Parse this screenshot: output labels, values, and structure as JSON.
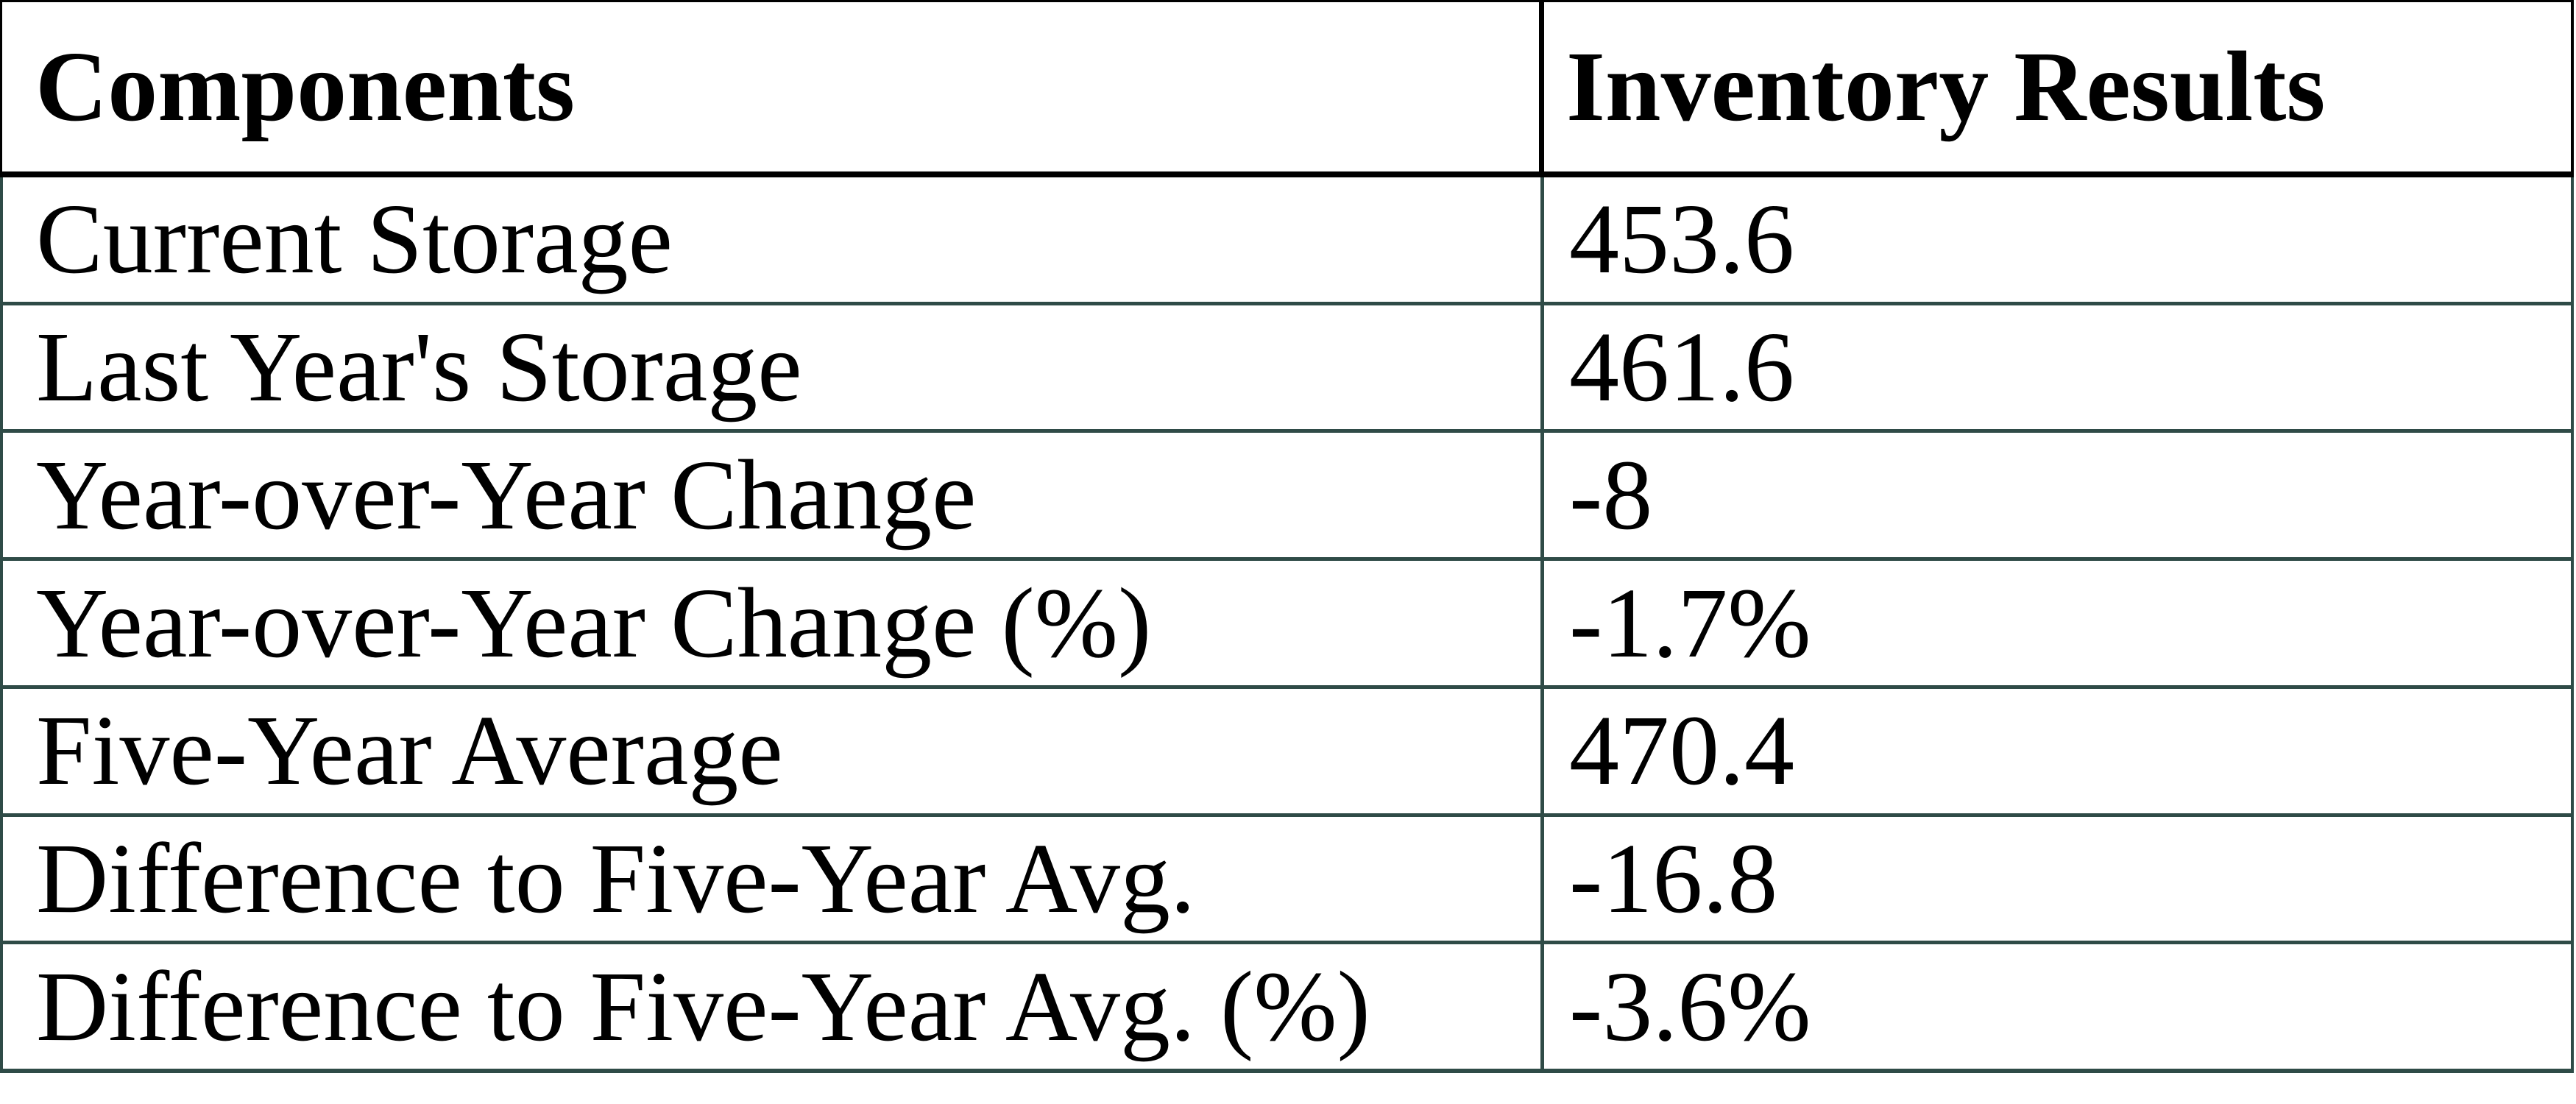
{
  "chart_data": {
    "type": "table",
    "title": "",
    "columns": [
      {
        "label": "Components"
      },
      {
        "label": "Inventory Results"
      }
    ],
    "rows": [
      {
        "label": "Current Storage",
        "value": "453.6"
      },
      {
        "label": "Last Year's Storage",
        "value": "461.6"
      },
      {
        "label": "Year-over-Year Change",
        "value": "-8"
      },
      {
        "label": "Year-over-Year Change (%)",
        "value": "-1.7%"
      },
      {
        "label": "Five-Year Average",
        "value": "470.4"
      },
      {
        "label": "Difference to Five-Year Avg.",
        "value": "-16.8"
      },
      {
        "label": "Difference to Five-Year Avg. (%)",
        "value": "-3.6%"
      }
    ],
    "colors": {
      "header_border": "#000000",
      "body_border": "#2F4B47",
      "text": "#000000",
      "background": "#FFFFFF"
    },
    "layout": {
      "header_font_weight": "bold",
      "text_align": "left",
      "grid": "on"
    }
  }
}
